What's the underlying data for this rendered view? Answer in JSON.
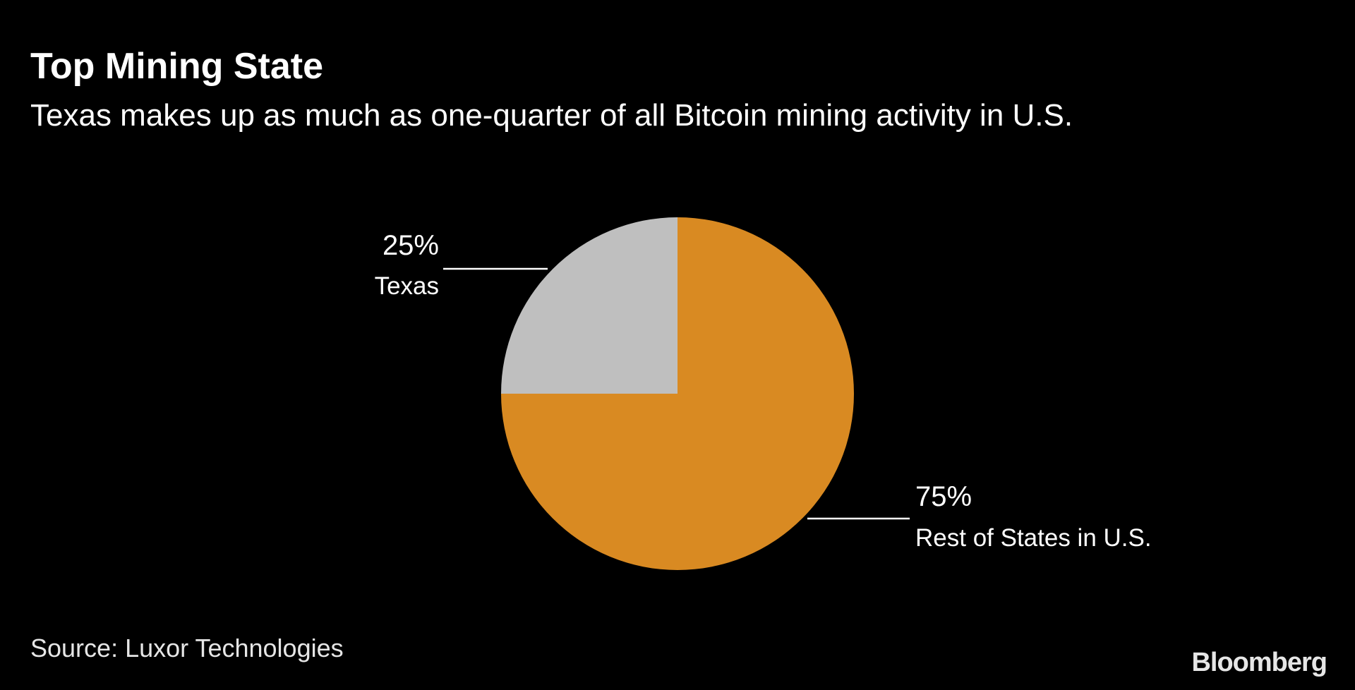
{
  "chart_data": {
    "type": "pie",
    "title": "Top Mining State",
    "subtitle": "Texas makes up as much as one-quarter of all Bitcoin mining activity in U.S.",
    "slices": [
      {
        "label": "Texas",
        "value": 25,
        "value_label": "25%",
        "color": "#bfbfbf"
      },
      {
        "label": "Rest of States in U.S.",
        "value": 75,
        "value_label": "75%",
        "color": "#d98a22"
      }
    ],
    "source": "Source: Luxor Technologies",
    "brand": "Bloomberg",
    "background": "#000000"
  }
}
